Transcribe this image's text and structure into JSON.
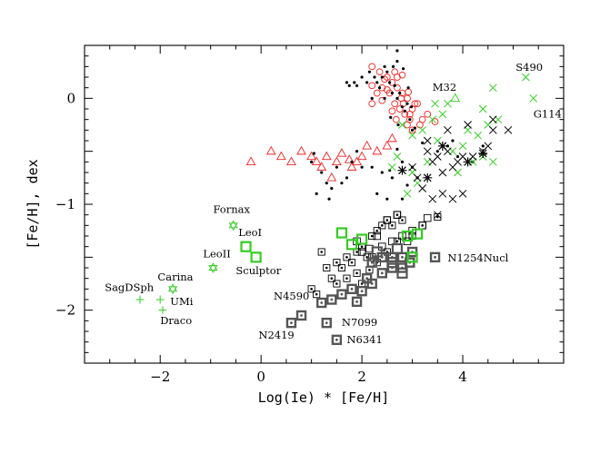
{
  "chart_data": {
    "type": "scatter",
    "xlabel": "Log(Ie) * [Fe/H]",
    "ylabel": "[Fe/H], dex",
    "xlim": [
      -3.5,
      6.0
    ],
    "ylim": [
      -2.5,
      0.5
    ],
    "xticks": [
      -2,
      0,
      2,
      4
    ],
    "yticks": [
      -2,
      -1,
      0
    ],
    "grid": false,
    "colors": {
      "red": "#ee2222",
      "green": "#33cc22",
      "black": "#000000",
      "gray": "#555555"
    },
    "series": [
      {
        "marker": "circle-open",
        "color": "red",
        "points": [
          [
            2.2,
            0.3
          ],
          [
            2.35,
            0.25
          ],
          [
            2.5,
            0.2
          ],
          [
            2.4,
            0.1
          ],
          [
            2.6,
            0.15
          ],
          [
            2.7,
            0.1
          ],
          [
            2.8,
            0.05
          ],
          [
            2.9,
            0.0
          ],
          [
            2.55,
            0.05
          ],
          [
            2.65,
            -0.05
          ],
          [
            2.75,
            -0.1
          ],
          [
            2.85,
            -0.15
          ],
          [
            2.95,
            -0.2
          ],
          [
            3.0,
            -0.1
          ],
          [
            3.05,
            -0.05
          ],
          [
            2.7,
            0.2
          ],
          [
            2.8,
            0.22
          ],
          [
            2.6,
            -0.12
          ],
          [
            2.9,
            -0.25
          ],
          [
            3.0,
            -0.3
          ],
          [
            2.95,
            -0.15
          ],
          [
            3.15,
            -0.25
          ],
          [
            3.2,
            -0.2
          ],
          [
            3.3,
            -0.15
          ],
          [
            2.4,
            -0.02
          ],
          [
            2.5,
            0.08
          ],
          [
            2.3,
            0.05
          ],
          [
            2.2,
            0.12
          ],
          [
            2.65,
            0.25
          ],
          [
            2.82,
            -0.05
          ],
          [
            2.92,
            0.06
          ],
          [
            3.1,
            -0.05
          ],
          [
            2.45,
            0.18
          ],
          [
            2.78,
            0.0
          ],
          [
            2.68,
            -0.2
          ],
          [
            3.45,
            -0.22
          ],
          [
            2.2,
            -0.05
          ]
        ]
      },
      {
        "marker": "triangle-open",
        "color": "red",
        "points": [
          [
            -0.2,
            -0.6
          ],
          [
            0.2,
            -0.5
          ],
          [
            0.4,
            -0.55
          ],
          [
            0.6,
            -0.6
          ],
          [
            0.8,
            -0.5
          ],
          [
            1.0,
            -0.55
          ],
          [
            1.1,
            -0.6
          ],
          [
            1.2,
            -0.65
          ],
          [
            1.3,
            -0.55
          ],
          [
            1.5,
            -0.6
          ],
          [
            1.6,
            -0.52
          ],
          [
            1.75,
            -0.58
          ],
          [
            1.9,
            -0.6
          ],
          [
            2.1,
            -0.45
          ],
          [
            2.3,
            -0.5
          ],
          [
            2.5,
            -0.45
          ],
          [
            2.6,
            -0.38
          ],
          [
            1.4,
            -0.75
          ],
          [
            2.0,
            -0.55
          ],
          [
            1.8,
            -0.65
          ]
        ]
      },
      {
        "marker": "dot",
        "color": "black",
        "points": [
          [
            2.15,
            0.25
          ],
          [
            2.25,
            0.2
          ],
          [
            2.3,
            0.15
          ],
          [
            2.4,
            0.2
          ],
          [
            2.45,
            0.3
          ],
          [
            2.5,
            0.25
          ],
          [
            2.55,
            0.15
          ],
          [
            2.6,
            0.05
          ],
          [
            2.65,
            0.12
          ],
          [
            2.7,
            0.0
          ],
          [
            2.75,
            0.05
          ],
          [
            2.8,
            -0.08
          ],
          [
            2.85,
            -0.12
          ],
          [
            2.9,
            -0.05
          ],
          [
            2.95,
            -0.2
          ],
          [
            3.0,
            -0.3
          ],
          [
            2.72,
            -0.25
          ],
          [
            2.62,
            0.3
          ],
          [
            2.7,
            0.35
          ],
          [
            2.82,
            0.28
          ],
          [
            2.92,
            0.1
          ],
          [
            2.98,
            -0.08
          ],
          [
            3.05,
            -0.28
          ],
          [
            2.57,
            -0.18
          ],
          [
            2.45,
            0.0
          ],
          [
            2.35,
            0.1
          ],
          [
            2.2,
            0.0
          ],
          [
            2.7,
            0.45
          ],
          [
            2.1,
            0.15
          ],
          [
            2.0,
            0.2
          ],
          [
            1.9,
            0.12
          ],
          [
            1.7,
            0.15
          ],
          [
            1.75,
            0.12
          ],
          [
            1.85,
            0.15
          ],
          [
            1.0,
            -0.6
          ],
          [
            1.2,
            -0.7
          ],
          [
            1.3,
            -0.8
          ],
          [
            1.5,
            -0.65
          ],
          [
            1.6,
            -0.8
          ],
          [
            1.7,
            -0.75
          ],
          [
            1.8,
            -0.6
          ],
          [
            2.0,
            -0.65
          ],
          [
            2.2,
            -0.65
          ],
          [
            2.4,
            -0.7
          ],
          [
            2.6,
            -0.75
          ],
          [
            2.8,
            -0.6
          ],
          [
            3.0,
            -0.65
          ],
          [
            1.1,
            -0.9
          ],
          [
            1.4,
            -0.85
          ],
          [
            2.3,
            -0.9
          ],
          [
            2.5,
            -0.95
          ],
          [
            2.8,
            -0.95
          ],
          [
            3.1,
            -0.75
          ],
          [
            3.5,
            -0.5
          ],
          [
            3.7,
            -0.45
          ],
          [
            3.9,
            -0.55
          ],
          [
            4.2,
            -0.6
          ],
          [
            1.05,
            -0.52
          ],
          [
            1.9,
            -0.5
          ],
          [
            2.7,
            -0.48
          ],
          [
            3.2,
            -0.42
          ],
          [
            2.9,
            -0.82
          ],
          [
            2.55,
            -0.68
          ],
          [
            1.35,
            -0.95
          ],
          [
            3.8,
            -0.4
          ],
          [
            4.4,
            -0.45
          ]
        ]
      },
      {
        "marker": "cross",
        "color": "green",
        "points": [
          [
            2.8,
            -0.25
          ],
          [
            3.0,
            -0.35
          ],
          [
            3.2,
            -0.3
          ],
          [
            3.4,
            -0.2
          ],
          [
            3.6,
            -0.15
          ],
          [
            3.7,
            -0.05
          ],
          [
            3.5,
            -0.4
          ],
          [
            3.8,
            -0.5
          ],
          [
            4.0,
            -0.45
          ],
          [
            4.2,
            -0.6
          ],
          [
            4.4,
            -0.55
          ],
          [
            4.6,
            -0.6
          ],
          [
            4.3,
            -0.35
          ],
          [
            4.5,
            -0.25
          ],
          [
            4.7,
            -0.2
          ],
          [
            4.1,
            -0.3
          ],
          [
            3.3,
            -0.6
          ],
          [
            3.1,
            -0.8
          ],
          [
            2.9,
            -0.9
          ],
          [
            3.0,
            -0.7
          ],
          [
            2.7,
            -0.55
          ],
          [
            2.6,
            -0.65
          ],
          [
            3.9,
            -0.7
          ],
          [
            4.4,
            -0.1
          ],
          [
            4.6,
            0.1
          ],
          [
            3.45,
            -0.05
          ]
        ]
      },
      {
        "marker": "cross",
        "color": "black",
        "points": [
          [
            3.3,
            -0.5
          ],
          [
            3.4,
            -0.6
          ],
          [
            3.5,
            -0.55
          ],
          [
            3.6,
            -0.7
          ],
          [
            3.7,
            -0.5
          ],
          [
            3.8,
            -0.65
          ],
          [
            3.9,
            -0.6
          ],
          [
            4.0,
            -0.55
          ],
          [
            4.2,
            -0.55
          ],
          [
            4.4,
            -0.5
          ],
          [
            4.5,
            -0.45
          ],
          [
            3.2,
            -0.85
          ],
          [
            3.4,
            -0.95
          ],
          [
            3.6,
            -0.9
          ],
          [
            3.8,
            -0.95
          ],
          [
            4.0,
            -0.9
          ],
          [
            3.0,
            -0.65
          ],
          [
            3.1,
            -0.75
          ],
          [
            3.3,
            -0.4
          ],
          [
            3.7,
            -0.3
          ],
          [
            4.1,
            -0.25
          ],
          [
            4.6,
            -0.2
          ],
          [
            4.6,
            -0.3
          ],
          [
            4.9,
            -0.3
          ],
          [
            3.5,
            -1.1
          ]
        ]
      },
      {
        "marker": "asterisk",
        "color": "black",
        "points": [
          [
            2.8,
            -0.68
          ],
          [
            3.3,
            -0.75
          ],
          [
            3.6,
            -0.45
          ],
          [
            4.1,
            -0.6
          ],
          [
            4.4,
            -0.52
          ]
        ]
      },
      {
        "marker": "square-open",
        "color": "black",
        "points": [
          [
            2.3,
            -1.3
          ],
          [
            2.4,
            -1.4
          ],
          [
            2.6,
            -1.35
          ],
          [
            2.8,
            -1.3
          ],
          [
            3.0,
            -1.25
          ],
          [
            3.2,
            -1.2
          ],
          [
            2.5,
            -1.15
          ],
          [
            2.7,
            -1.1
          ],
          [
            1.9,
            -1.35
          ],
          [
            2.0,
            -1.45
          ],
          [
            2.2,
            -1.5
          ],
          [
            2.9,
            -1.35
          ],
          [
            3.3,
            -1.13
          ],
          [
            2.15,
            -1.42
          ]
        ]
      },
      {
        "marker": "square-dot",
        "color": "black",
        "points": [
          [
            1.0,
            -1.8
          ],
          [
            1.1,
            -1.85
          ],
          [
            1.3,
            -1.6
          ],
          [
            1.4,
            -1.7
          ],
          [
            1.5,
            -1.55
          ],
          [
            1.6,
            -1.6
          ],
          [
            1.7,
            -1.5
          ],
          [
            1.8,
            -1.55
          ],
          [
            1.9,
            -1.45
          ],
          [
            2.0,
            -1.4
          ],
          [
            2.1,
            -1.5
          ],
          [
            2.2,
            -1.3
          ],
          [
            2.3,
            -1.25
          ],
          [
            2.4,
            -1.2
          ],
          [
            2.5,
            -1.15
          ],
          [
            2.6,
            -1.2
          ],
          [
            2.7,
            -1.1
          ],
          [
            2.8,
            -1.15
          ],
          [
            1.2,
            -1.45
          ],
          [
            1.5,
            -1.75
          ],
          [
            1.7,
            -1.7
          ],
          [
            2.3,
            -1.55
          ],
          [
            2.5,
            -1.45
          ],
          [
            2.7,
            -1.35
          ],
          [
            3.0,
            -1.3
          ],
          [
            3.2,
            -1.2
          ],
          [
            3.5,
            -1.12
          ],
          [
            2.0,
            -1.75
          ],
          [
            1.9,
            -1.65
          ],
          [
            2.15,
            -1.62
          ]
        ]
      },
      {
        "marker": "square-dot-bold",
        "color": "gray",
        "points": [
          [
            0.6,
            -2.12
          ],
          [
            0.8,
            -2.05
          ],
          [
            1.2,
            -1.93
          ],
          [
            1.4,
            -1.9
          ],
          [
            1.6,
            -1.85
          ],
          [
            1.8,
            -1.8
          ],
          [
            2.0,
            -1.82
          ],
          [
            2.2,
            -1.75
          ],
          [
            2.4,
            -1.65
          ],
          [
            2.6,
            -1.6
          ],
          [
            2.8,
            -1.5
          ],
          [
            3.0,
            -1.45
          ],
          [
            2.2,
            -1.55
          ],
          [
            2.4,
            -1.5
          ],
          [
            2.6,
            -1.5
          ],
          [
            2.8,
            -1.6
          ],
          [
            1.9,
            -1.92
          ],
          [
            2.1,
            -1.7
          ],
          [
            1.3,
            -2.12
          ],
          [
            1.5,
            -2.28
          ],
          [
            3.45,
            -1.5
          ],
          [
            2.95,
            -1.55
          ]
        ]
      },
      {
        "marker": "square-open-bold",
        "color": "green",
        "points": [
          [
            -0.3,
            -1.4
          ],
          [
            -0.1,
            -1.5
          ],
          [
            1.8,
            -1.38
          ],
          [
            2.0,
            -1.33
          ],
          [
            1.6,
            -1.27
          ],
          [
            2.9,
            -1.3
          ],
          [
            3.0,
            -1.5
          ],
          [
            3.1,
            -1.28
          ]
        ]
      },
      {
        "marker": "square-open-bold",
        "color": "gray",
        "points": [
          [
            2.6,
            -1.55
          ],
          [
            2.8,
            -1.65
          ],
          [
            2.3,
            -1.45
          ],
          [
            2.7,
            -1.42
          ]
        ]
      },
      {
        "marker": "star6-open",
        "color": "green",
        "points": [
          [
            -0.55,
            -1.2
          ],
          [
            -0.95,
            -1.6
          ],
          [
            -1.75,
            -1.8
          ]
        ]
      },
      {
        "marker": "plus",
        "color": "green",
        "points": [
          [
            -2.4,
            -1.9
          ],
          [
            -2.0,
            -1.9
          ],
          [
            -1.95,
            -2.0
          ]
        ]
      },
      {
        "marker": "triangle-open",
        "color": "green",
        "points": [
          [
            3.85,
            0.0
          ]
        ]
      },
      {
        "marker": "cross",
        "color": "green",
        "points": [
          [
            5.25,
            0.2
          ],
          [
            5.4,
            0.0
          ]
        ]
      }
    ],
    "annotations": [
      {
        "text": "SagDSph",
        "x": -3.1,
        "y": -1.82
      },
      {
        "text": "Carina",
        "x": -2.05,
        "y": -1.72
      },
      {
        "text": "UMi",
        "x": -1.8,
        "y": -1.95
      },
      {
        "text": "Draco",
        "x": -2.0,
        "y": -2.13
      },
      {
        "text": "Fornax",
        "x": -0.95,
        "y": -1.08
      },
      {
        "text": "LeoI",
        "x": -0.45,
        "y": -1.3
      },
      {
        "text": "LeoII",
        "x": -1.15,
        "y": -1.5
      },
      {
        "text": "Sculptor",
        "x": -0.5,
        "y": -1.66
      },
      {
        "text": "N4590",
        "x": 0.25,
        "y": -1.9
      },
      {
        "text": "N2419",
        "x": -0.05,
        "y": -2.27
      },
      {
        "text": "N7099",
        "x": 1.6,
        "y": -2.15
      },
      {
        "text": "N6341",
        "x": 1.7,
        "y": -2.31
      },
      {
        "text": "N1254Nucl",
        "x": 3.7,
        "y": -1.54
      },
      {
        "text": "M32",
        "x": 3.4,
        "y": 0.07
      },
      {
        "text": "S490",
        "x": 5.05,
        "y": 0.26
      },
      {
        "text": "G114",
        "x": 5.4,
        "y": -0.18
      }
    ]
  }
}
